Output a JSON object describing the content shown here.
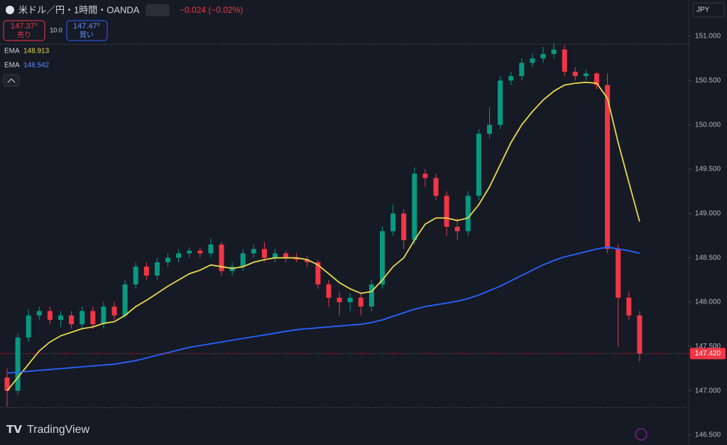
{
  "chart_data": {
    "type": "candlestick",
    "title": "米ドル／円・1時間・OANDA",
    "change": "−0.024 (−0.02%)",
    "sell": {
      "price": "147.37⁰",
      "label": "売り"
    },
    "spread": "10.0",
    "buy": {
      "price": "147.47⁰",
      "label": "買い"
    },
    "currency": "JPY",
    "watermark": "TradingView",
    "up_color": "#089981",
    "down_color": "#f23645",
    "open": [
      147.15,
      147.0,
      147.6,
      147.85,
      147.9,
      147.8,
      147.85,
      147.75,
      147.9,
      147.75,
      147.95,
      147.85,
      148.2,
      148.4,
      148.3,
      148.45,
      148.5,
      148.55,
      148.58,
      148.55,
      148.65,
      148.35,
      148.4,
      148.55,
      148.6,
      148.5,
      148.55,
      148.5,
      148.48,
      148.45,
      148.2,
      148.05,
      148.0,
      148.05,
      147.95,
      148.2,
      148.8,
      149.0,
      148.7,
      149.45,
      149.4,
      149.2,
      148.85,
      148.8,
      149.2,
      149.9,
      150.0,
      150.5,
      150.55,
      150.7,
      150.75,
      150.8,
      150.85,
      150.6,
      150.55,
      150.58,
      150.45,
      148.6,
      148.05,
      147.85
    ],
    "high": [
      147.25,
      147.65,
      147.92,
      147.95,
      147.95,
      147.9,
      147.9,
      147.95,
      147.95,
      148.0,
      148.0,
      148.25,
      148.45,
      148.45,
      148.5,
      148.55,
      148.6,
      148.62,
      148.62,
      148.72,
      148.68,
      148.45,
      148.6,
      148.65,
      148.68,
      148.6,
      148.58,
      148.55,
      148.52,
      148.48,
      148.25,
      148.12,
      148.1,
      148.1,
      148.25,
      148.85,
      149.1,
      149.05,
      149.52,
      149.5,
      149.45,
      149.25,
      148.95,
      149.25,
      149.95,
      150.2,
      150.55,
      150.6,
      150.75,
      150.8,
      150.88,
      150.92,
      150.9,
      150.65,
      150.62,
      150.6,
      150.58,
      148.65,
      148.12,
      147.9
    ],
    "low": [
      146.82,
      146.95,
      147.55,
      147.8,
      147.75,
      147.72,
      147.7,
      147.7,
      147.7,
      147.7,
      147.8,
      147.82,
      148.15,
      148.25,
      148.25,
      148.4,
      148.45,
      148.5,
      148.5,
      148.5,
      148.3,
      148.3,
      148.35,
      148.5,
      148.45,
      148.45,
      148.45,
      148.45,
      148.4,
      148.15,
      147.95,
      147.85,
      147.9,
      147.85,
      147.9,
      148.15,
      148.75,
      148.6,
      148.65,
      149.3,
      149.15,
      148.75,
      148.7,
      148.75,
      149.15,
      149.85,
      149.95,
      150.45,
      150.5,
      150.65,
      150.7,
      150.75,
      150.55,
      150.5,
      150.5,
      150.4,
      148.55,
      147.5,
      147.8,
      147.33
    ],
    "close": [
      147.0,
      147.6,
      147.85,
      147.9,
      147.8,
      147.85,
      147.75,
      147.9,
      147.75,
      147.95,
      147.85,
      148.2,
      148.4,
      148.3,
      148.45,
      148.5,
      148.55,
      148.58,
      148.55,
      148.65,
      148.35,
      148.4,
      148.55,
      148.6,
      148.5,
      148.55,
      148.5,
      148.48,
      148.45,
      148.2,
      148.05,
      148.0,
      148.05,
      147.95,
      148.2,
      148.8,
      149.0,
      148.7,
      149.45,
      149.4,
      149.2,
      148.85,
      148.8,
      149.2,
      149.9,
      150.0,
      150.5,
      150.55,
      150.7,
      150.75,
      150.8,
      150.85,
      150.6,
      150.55,
      150.58,
      150.45,
      148.6,
      148.05,
      147.85,
      147.42
    ],
    "series": [
      {
        "name": "EMA",
        "value_label": "148.913",
        "color": "#e9d84a",
        "values": [
          147.0,
          147.15,
          147.3,
          147.45,
          147.55,
          147.62,
          147.66,
          147.7,
          147.72,
          147.76,
          147.78,
          147.85,
          147.95,
          148.02,
          148.1,
          148.18,
          148.25,
          148.32,
          148.36,
          148.42,
          148.4,
          148.38,
          148.4,
          148.45,
          148.48,
          148.5,
          148.5,
          148.5,
          148.48,
          148.42,
          148.32,
          148.22,
          148.15,
          148.1,
          148.12,
          148.25,
          148.4,
          148.5,
          148.7,
          148.88,
          148.95,
          148.95,
          148.92,
          148.95,
          149.1,
          149.3,
          149.55,
          149.8,
          150.0,
          150.15,
          150.28,
          150.38,
          150.45,
          150.47,
          150.48,
          150.47,
          150.3,
          149.8,
          149.35,
          148.91
        ]
      },
      {
        "name": "EMA",
        "value_label": "148.542",
        "color": "#2962ff",
        "values": [
          147.2,
          147.21,
          147.22,
          147.23,
          147.24,
          147.25,
          147.26,
          147.27,
          147.28,
          147.29,
          147.3,
          147.32,
          147.34,
          147.37,
          147.4,
          147.43,
          147.46,
          147.49,
          147.51,
          147.53,
          147.55,
          147.57,
          147.59,
          147.61,
          147.63,
          147.65,
          147.67,
          147.69,
          147.7,
          147.71,
          147.72,
          147.73,
          147.74,
          147.75,
          147.77,
          147.8,
          147.84,
          147.88,
          147.92,
          147.95,
          147.97,
          147.99,
          148.01,
          148.04,
          148.08,
          148.13,
          148.18,
          148.24,
          148.3,
          148.36,
          148.42,
          148.47,
          148.51,
          148.54,
          148.57,
          148.6,
          148.62,
          148.6,
          148.58,
          148.55
        ]
      }
    ],
    "last_price": {
      "value": 147.42,
      "label": "147.420"
    },
    "range_lines": [
      150.91,
      146.81
    ],
    "ylim": [
      146.388,
      151.409
    ],
    "yticks": [
      {
        "value": 146.5,
        "label": "146.500"
      },
      {
        "value": 147,
        "label": "147.000"
      },
      {
        "value": 147.5,
        "label": "147.500"
      },
      {
        "value": 148,
        "label": "148.000"
      },
      {
        "value": 148.5,
        "label": "148.500"
      },
      {
        "value": 149,
        "label": "149.000"
      },
      {
        "value": 149.5,
        "label": "149.500"
      },
      {
        "value": 150,
        "label": "150.000"
      },
      {
        "value": 150.5,
        "label": "150.500"
      },
      {
        "value": 151,
        "label": "151.000"
      }
    ]
  }
}
